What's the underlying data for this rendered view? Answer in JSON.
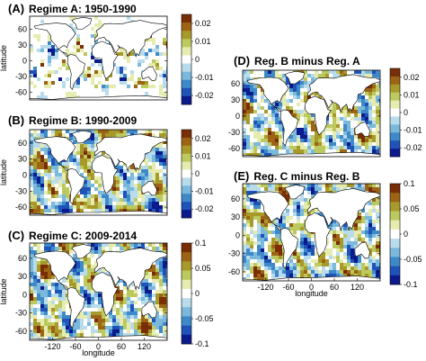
{
  "figure": {
    "y_axis_label": "latitude",
    "x_axis_label": "longitude"
  },
  "chart_data": [
    {
      "id": "A",
      "type": "heatmap",
      "letter": "(A)",
      "title": "Regime A: 1950-1990",
      "xlabel": "",
      "ylabel": "latitude",
      "xlim": [
        -180,
        180
      ],
      "ylim": [
        -75,
        85
      ],
      "yticks": [
        60,
        30,
        0,
        -30,
        -60
      ],
      "xticks": [],
      "colorbar": {
        "ticks": [
          0.02,
          0.01,
          0,
          -0.01,
          -0.02
        ],
        "labels": [
          "0.02",
          "0.01",
          "0",
          "-0.01",
          "-0.02"
        ],
        "range": [
          -0.025,
          0.025
        ]
      },
      "coverage": "sparse"
    },
    {
      "id": "B",
      "type": "heatmap",
      "letter": "(B)",
      "title": "Regime B: 1990-2009",
      "xlabel": "",
      "ylabel": "latitude",
      "xlim": [
        -180,
        180
      ],
      "ylim": [
        -75,
        85
      ],
      "yticks": [
        60,
        30,
        0,
        -30,
        -60
      ],
      "xticks": [],
      "colorbar": {
        "ticks": [
          0.02,
          0.01,
          0,
          -0.01,
          -0.02
        ],
        "labels": [
          "0.02",
          "0.01",
          "0",
          "-0.01",
          "-0.02"
        ],
        "range": [
          -0.025,
          0.025
        ]
      },
      "coverage": "full"
    },
    {
      "id": "C",
      "type": "heatmap",
      "letter": "(C)",
      "title": "Regime C: 2009-2014",
      "xlabel": "longitude",
      "ylabel": "latitude",
      "xlim": [
        -180,
        180
      ],
      "ylim": [
        -75,
        85
      ],
      "yticks": [
        60,
        30,
        0,
        -30,
        -60
      ],
      "xticks": [
        -120,
        -60,
        0,
        60,
        120
      ],
      "colorbar": {
        "ticks": [
          0.1,
          0.05,
          0,
          -0.05,
          -0.1
        ],
        "labels": [
          "0.1",
          "0.05",
          "0",
          "-0.05",
          "-0.1"
        ],
        "range": [
          -0.1,
          0.1
        ]
      },
      "coverage": "full"
    },
    {
      "id": "D",
      "type": "heatmap",
      "letter": "(D)",
      "title": "Reg. B minus Reg. A",
      "xlabel": "",
      "ylabel": "",
      "xlim": [
        -180,
        180
      ],
      "ylim": [
        -75,
        85
      ],
      "yticks": [
        60,
        30,
        0,
        -30,
        -60
      ],
      "xticks": [],
      "colorbar": {
        "ticks": [
          0.02,
          0.01,
          0,
          -0.01,
          -0.02
        ],
        "labels": [
          "0.02",
          "0.01",
          "0",
          "-0.01",
          "-0.02"
        ],
        "range": [
          -0.025,
          0.025
        ]
      },
      "coverage": "full"
    },
    {
      "id": "E",
      "type": "heatmap",
      "letter": "(E)",
      "title": "Reg. C minus Reg. B",
      "xlabel": "longitude",
      "ylabel": "",
      "xlim": [
        -180,
        180
      ],
      "ylim": [
        -75,
        85
      ],
      "yticks": [
        60,
        30,
        0,
        -30,
        -60
      ],
      "xticks": [
        -120,
        -60,
        0,
        60,
        120
      ],
      "colorbar": {
        "ticks": [
          0.1,
          0.05,
          0,
          -0.05,
          -0.1
        ],
        "labels": [
          "0.1",
          "0.05",
          "0",
          "-0.05",
          "-0.1"
        ],
        "range": [
          -0.1,
          0.1
        ]
      },
      "coverage": "full"
    }
  ],
  "colormap": [
    "#0b1a8c",
    "#1f53b8",
    "#3e8ac9",
    "#7ab8dc",
    "#b8dcec",
    "#ffffff",
    "#e6ecb0",
    "#bcc95e",
    "#a89a2a",
    "#9c6414",
    "#7a2e06"
  ]
}
